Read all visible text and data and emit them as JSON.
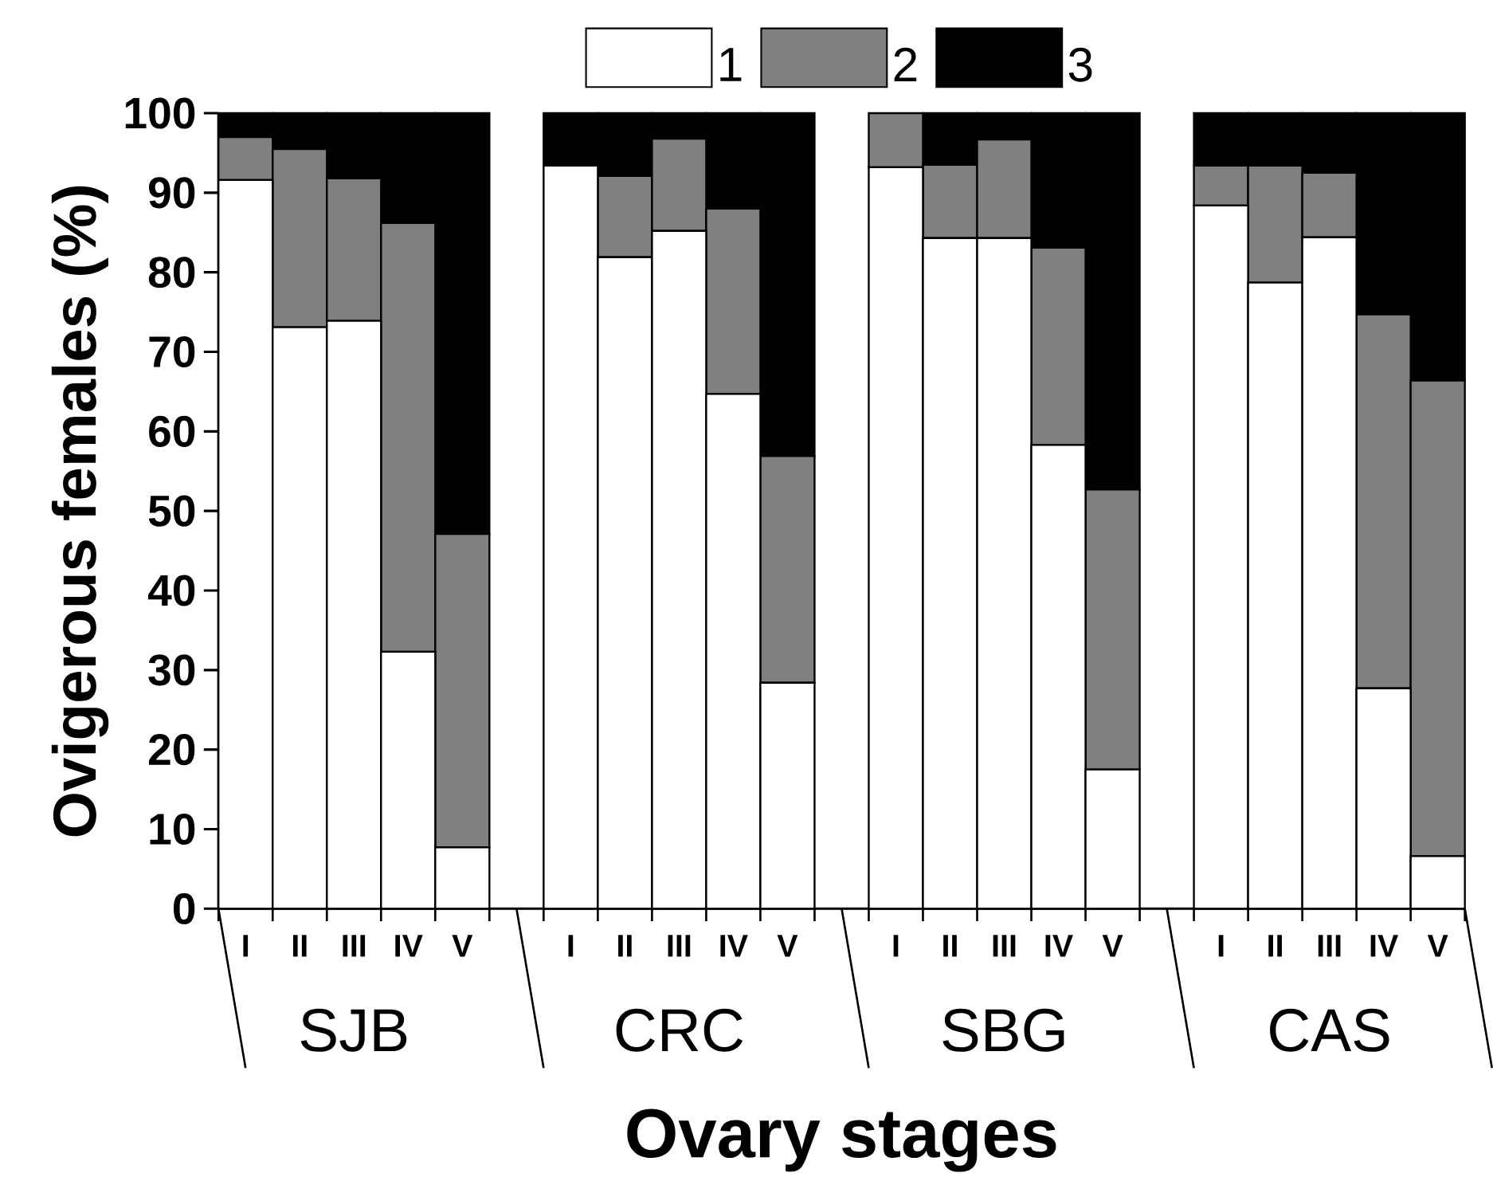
{
  "chart_data": {
    "type": "bar",
    "stacked": true,
    "xlabel": "Ovary stages",
    "ylabel": "Ovigerous females (%)",
    "categories": [
      "I",
      "II",
      "III",
      "IV",
      "V",
      "I",
      "II",
      "III",
      "IV",
      "V",
      "I",
      "II",
      "III",
      "IV",
      "V",
      "I",
      "II",
      "III",
      "IV",
      "V"
    ],
    "annotations": [
      "SJB",
      "CRC",
      "SBG",
      "CAS"
    ],
    "series": [
      {
        "name": "1",
        "color": "#ffffff",
        "values": [
          91.6,
          73.1,
          73.9,
          32.3,
          7.7,
          93.4,
          81.9,
          85.2,
          64.7,
          28.4,
          93.2,
          84.3,
          84.3,
          58.3,
          17.5,
          88.4,
          78.7,
          84.4,
          27.7,
          6.6
        ]
      },
      {
        "name": "2",
        "color": "#808080",
        "values": [
          5.4,
          22.4,
          17.9,
          53.9,
          39.4,
          0,
          10.2,
          11.6,
          23.3,
          28.5,
          6.8,
          9.2,
          12.4,
          24.8,
          35.2,
          5.0,
          14.7,
          8.1,
          47.0,
          59.8
        ]
      },
      {
        "name": "3",
        "color": "#000000",
        "values": [
          3.0,
          4.5,
          8.2,
          13.8,
          52.9,
          6.6,
          7.9,
          3.2,
          12.0,
          43.1,
          0,
          6.5,
          3.3,
          16.9,
          47.3,
          6.6,
          6.6,
          7.5,
          25.3,
          33.6
        ]
      }
    ],
    "ylim": [
      0,
      100
    ],
    "yticks": [
      0,
      10,
      20,
      30,
      40,
      50,
      60,
      70,
      80,
      90,
      100
    ],
    "legend": "top"
  }
}
